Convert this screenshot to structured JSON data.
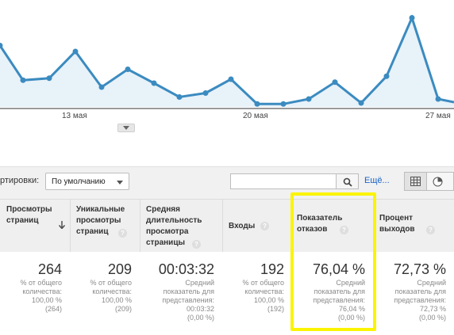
{
  "chart": {
    "line_color": "#3b8bc0",
    "fill_color": "#e8f2f9",
    "x_labels": [
      "13 мая",
      "20 мая",
      "27 мая"
    ],
    "points": [
      0.62,
      0.27,
      0.29,
      0.56,
      0.2,
      0.38,
      0.24,
      0.1,
      0.14,
      0.28,
      0.03,
      0.03,
      0.08,
      0.25,
      0.04,
      0.31,
      0.9,
      0.08
    ]
  },
  "toolbar": {
    "sort_label": "ртировки:",
    "select_value": "По умолчанию",
    "search_value": "",
    "more_link": "Ещё..."
  },
  "table": {
    "headers": [
      {
        "label": "Просмотры страниц"
      },
      {
        "label": "Уникальные просмотры страниц"
      },
      {
        "label": "Средняя длительность просмотра страницы"
      },
      {
        "label": "Входы"
      },
      {
        "label": "Показатель отказов"
      },
      {
        "label": "Процент выходов"
      }
    ],
    "help_glyph": "?",
    "values": [
      "264",
      "209",
      "00:03:32",
      "192",
      "76,04 %",
      "72,73 %"
    ],
    "subs": [
      [
        "% от общего",
        "количества:",
        "100,00 %",
        "(264)"
      ],
      [
        "% от общего",
        "количества:",
        "100,00 %",
        "(209)"
      ],
      [
        "Средний",
        "показатель для",
        "представления:",
        "00:03:32",
        "(0,00 %)"
      ],
      [
        "% от общего",
        "количества:",
        "100,00 %",
        "(192)"
      ],
      [
        "Средний",
        "показатель для",
        "представления:",
        "76,04 %",
        "(0,00 %)"
      ],
      [
        "Средний",
        "показатель для",
        "представления:",
        "72,73 %",
        "(0,00 %)"
      ]
    ]
  },
  "highlight_color": "#fbf400"
}
